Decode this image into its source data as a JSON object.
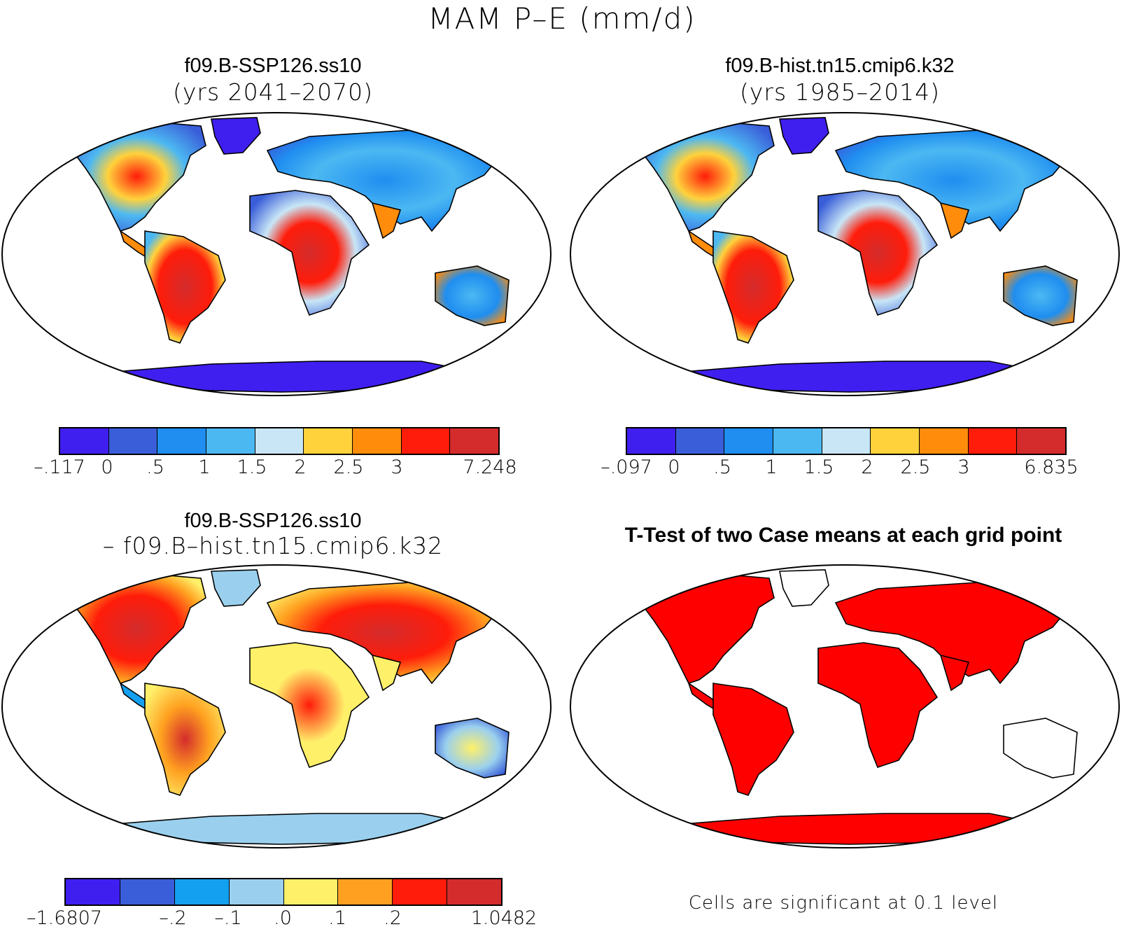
{
  "title": "MAM P–E (mm/d)",
  "panels": [
    {
      "id": "ssp",
      "title": "f09.B-SSP126.ss10",
      "subtitle": "(yrs 2041–2070)",
      "colorbar": {
        "colors": [
          "#3f1ff0",
          "#3a5ed9",
          "#1f8ef0",
          "#4cb8f2",
          "#c8e6f6",
          "#ffd23c",
          "#ff8c0a",
          "#ff1c0a",
          "#d42c2c"
        ],
        "labels": [
          "–.117",
          "0",
          ".5",
          "1",
          "1.5",
          "2",
          "2.5",
          "3",
          "7.248"
        ]
      }
    },
    {
      "id": "hist",
      "title": "f09.B-hist.tn15.cmip6.k32",
      "subtitle": "(yrs 1985–2014)",
      "colorbar": {
        "colors": [
          "#3f1ff0",
          "#3a5ed9",
          "#1f8ef0",
          "#4cb8f2",
          "#c8e6f6",
          "#ffd23c",
          "#ff8c0a",
          "#ff1c0a",
          "#d42c2c"
        ],
        "labels": [
          "–.097",
          "0",
          ".5",
          "1",
          "1.5",
          "2",
          "2.5",
          "3",
          "6.835"
        ]
      }
    },
    {
      "id": "diff",
      "title": "f09.B-SSP126.ss10",
      "subtitle": "– f09.B–hist.tn15.cmip6.k32",
      "colorbar": {
        "colors": [
          "#3f1ff0",
          "#3a5ed9",
          "#14a0f0",
          "#9ad0ee",
          "#fff06a",
          "#ffa020",
          "#ff1c0a",
          "#d42c2c"
        ],
        "labels": [
          "–1.6807",
          "–.2",
          "–.1",
          ".0",
          ".1",
          ".2",
          "1.0482"
        ]
      }
    },
    {
      "id": "ttest",
      "title": "T-Test of two Case means at each grid point",
      "note": "Cells are significant at 0.1 level",
      "colors": {
        "significant": "#ff0000"
      }
    }
  ]
}
